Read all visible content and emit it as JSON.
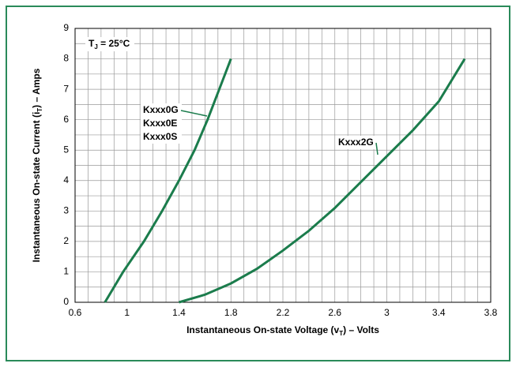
{
  "chart_data": {
    "type": "line",
    "xlabel": [
      "Instantaneous On-state Voltage (v",
      "T",
      ") – Volts"
    ],
    "ylabel": [
      "Instantaneous On-state Current (i",
      "T",
      ") – Amps"
    ],
    "condition": [
      "T",
      "J",
      " = 25°C"
    ],
    "xlim": [
      0.6,
      3.8
    ],
    "ylim": [
      0,
      9
    ],
    "xticks": [
      0.6,
      1.0,
      1.4,
      1.8,
      2.2,
      2.6,
      3.0,
      3.4,
      3.8
    ],
    "yticks": [
      0,
      1,
      2,
      3,
      4,
      5,
      6,
      7,
      8,
      9
    ],
    "minor_xticks": [
      0.7,
      0.8,
      0.9,
      1.1,
      1.2,
      1.3,
      1.5,
      1.6,
      1.7,
      1.9,
      2.0,
      2.1,
      2.3,
      2.4,
      2.5,
      2.7,
      2.8,
      2.9,
      3.1,
      3.2,
      3.3,
      3.5,
      3.6,
      3.7
    ],
    "minor_yticks": [
      0.5,
      1.5,
      2.5,
      3.5,
      4.5,
      5.5,
      6.5,
      7.5,
      8.5
    ],
    "grid": true,
    "series": [
      {
        "name": [
          "Kxxx0G",
          "Kxxx0E",
          "Kxxx0S"
        ],
        "color": "#1b7c4c",
        "x": [
          0.83,
          0.97,
          1.13,
          1.27,
          1.4,
          1.52,
          1.62,
          1.71,
          1.8
        ],
        "values": [
          0,
          1,
          2,
          3,
          4,
          5,
          6,
          7,
          8
        ]
      },
      {
        "name": [
          "Kxxx2G"
        ],
        "color": "#1b7c4c",
        "x": [
          1.4,
          1.6,
          1.8,
          2.0,
          2.2,
          2.4,
          2.6,
          2.8,
          3.0,
          3.2,
          3.4,
          3.6
        ],
        "values": [
          0,
          0.25,
          0.62,
          1.1,
          1.7,
          2.35,
          3.1,
          3.95,
          4.8,
          5.65,
          6.6,
          8.0
        ]
      }
    ]
  }
}
